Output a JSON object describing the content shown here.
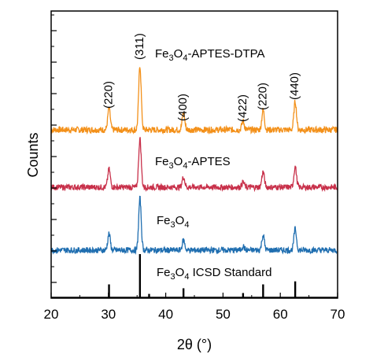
{
  "chart_data": {
    "type": "line",
    "xlabel": "2θ (°)",
    "ylabel": "Counts",
    "xlim": [
      20,
      70
    ],
    "xticks": [
      20,
      30,
      40,
      50,
      60,
      70
    ],
    "y_tick_labels_shown": false,
    "grid": false,
    "legend": "none",
    "series": [
      {
        "name": "Fe3O4-APTES-DTPA",
        "label_main": "Fe",
        "label_sub1": "3",
        "label_mid": "O",
        "label_sub2": "4",
        "label_tail": "-APTES-DTPA",
        "color": "#f39019",
        "peaks": [
          {
            "x": 30.1,
            "h": 0.3
          },
          {
            "x": 35.5,
            "h": 0.9
          },
          {
            "x": 43.1,
            "h": 0.24
          },
          {
            "x": 53.5,
            "h": 0.12
          },
          {
            "x": 57.0,
            "h": 0.28
          },
          {
            "x": 62.6,
            "h": 0.4
          }
        ]
      },
      {
        "name": "Fe3O4-APTES",
        "label_main": "Fe",
        "label_sub1": "3",
        "label_mid": "O",
        "label_sub2": "4",
        "label_tail": "-APTES",
        "color": "#c8304a",
        "peaks": [
          {
            "x": 30.1,
            "h": 0.28
          },
          {
            "x": 35.5,
            "h": 0.75
          },
          {
            "x": 43.1,
            "h": 0.16
          },
          {
            "x": 53.5,
            "h": 0.08
          },
          {
            "x": 57.0,
            "h": 0.24
          },
          {
            "x": 62.6,
            "h": 0.32
          }
        ]
      },
      {
        "name": "Fe3O4",
        "label_main": "Fe",
        "label_sub1": "3",
        "label_mid": "O",
        "label_sub2": "4",
        "label_tail": "",
        "color": "#1f6eb0",
        "peaks": [
          {
            "x": 30.1,
            "h": 0.25
          },
          {
            "x": 35.5,
            "h": 0.78
          },
          {
            "x": 43.1,
            "h": 0.15
          },
          {
            "x": 53.5,
            "h": 0.06
          },
          {
            "x": 57.0,
            "h": 0.23
          },
          {
            "x": 62.6,
            "h": 0.32
          }
        ]
      },
      {
        "name": "Fe3O4 ICSD Standard",
        "label_main": "Fe",
        "label_sub1": "3",
        "label_mid": "O",
        "label_sub2": "4",
        "label_tail": " ICSD Standard",
        "color": "#000000",
        "sticks": [
          {
            "x": 30.1,
            "h": 0.3
          },
          {
            "x": 35.5,
            "h": 1.0
          },
          {
            "x": 37.1,
            "h": 0.08
          },
          {
            "x": 43.1,
            "h": 0.21
          },
          {
            "x": 53.5,
            "h": 0.1
          },
          {
            "x": 57.0,
            "h": 0.3
          },
          {
            "x": 62.6,
            "h": 0.37
          }
        ]
      }
    ],
    "annotations": [
      {
        "text": "(220)",
        "x": 30.1
      },
      {
        "text": "(311)",
        "x": 35.5
      },
      {
        "text": "(400)",
        "x": 43.1
      },
      {
        "text": "(422)",
        "x": 53.5
      },
      {
        "text": "(220)",
        "x": 57.0
      },
      {
        "text": "(440)",
        "x": 62.6
      }
    ]
  }
}
